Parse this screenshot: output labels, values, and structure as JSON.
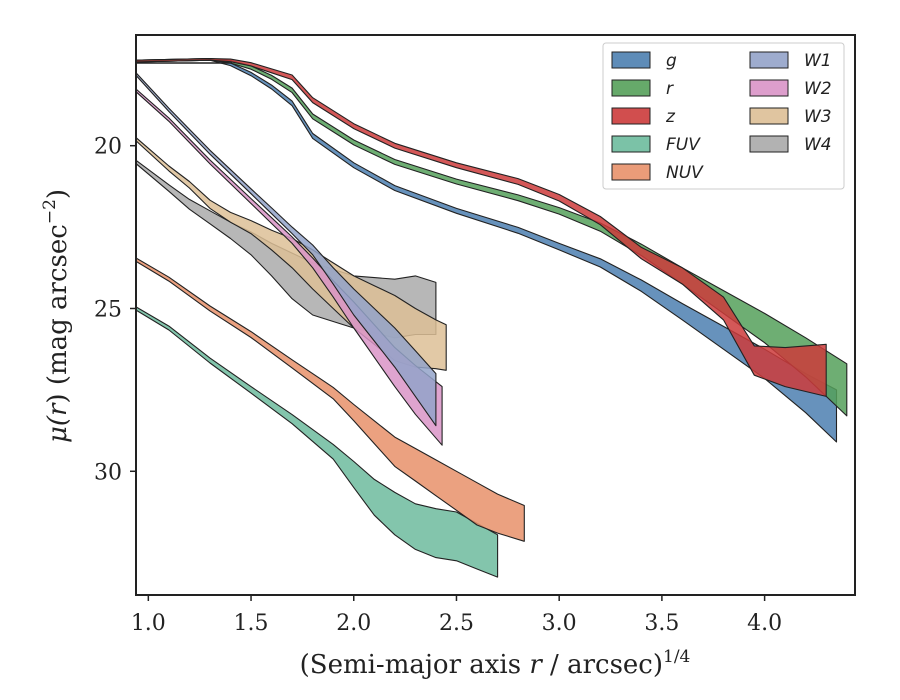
{
  "chart_data": {
    "type": "area",
    "xlabel_main": "(Semi-major axis ",
    "xlabel_var": "r",
    "xlabel_tail": " / arcsec)",
    "xlabel_sup": "1/4",
    "ylabel_main": "μ(",
    "ylabel_var": "r",
    "ylabel_tail": ") (mag arcsec",
    "ylabel_sup": "−2",
    "ylabel_close": ")",
    "xlim": [
      0.94,
      4.44
    ],
    "ylim": [
      33.8,
      16.6
    ],
    "y_inverted": true,
    "x_ticks": [
      1.0,
      1.5,
      2.0,
      2.5,
      3.0,
      3.5,
      4.0
    ],
    "x_tick_labels": [
      "1.0",
      "1.5",
      "2.0",
      "2.5",
      "3.0",
      "3.5",
      "4.0"
    ],
    "y_ticks": [
      20,
      25,
      30
    ],
    "y_tick_labels": [
      "20",
      "25",
      "30"
    ],
    "grid": false,
    "legend_position": "top-right",
    "legend_columns": 2,
    "series": [
      {
        "name": "g",
        "color": "#4c7fb0",
        "x": [
          0.94,
          1.3,
          1.4,
          1.5,
          1.6,
          1.7,
          1.8,
          2.0,
          2.2,
          2.5,
          2.8,
          3.0,
          3.2,
          3.4,
          3.6,
          3.8,
          4.0,
          4.2,
          4.35
        ],
        "y": [
          17.4,
          17.35,
          17.5,
          17.8,
          18.2,
          18.7,
          19.7,
          20.6,
          21.3,
          22.0,
          22.6,
          23.1,
          23.6,
          24.3,
          25.1,
          25.9,
          26.7,
          27.6,
          28.3
        ],
        "w": [
          0.05,
          0.05,
          0.08,
          0.1,
          0.12,
          0.14,
          0.15,
          0.15,
          0.15,
          0.15,
          0.18,
          0.2,
          0.25,
          0.35,
          0.5,
          0.7,
          0.9,
          1.2,
          1.6
        ]
      },
      {
        "name": "r",
        "color": "#55a05a",
        "x": [
          0.94,
          1.3,
          1.4,
          1.5,
          1.6,
          1.7,
          1.8,
          2.0,
          2.2,
          2.5,
          2.8,
          3.0,
          3.2,
          3.4,
          3.6,
          3.8,
          4.0,
          4.2,
          4.4
        ],
        "y": [
          17.4,
          17.35,
          17.42,
          17.6,
          17.9,
          18.3,
          19.1,
          19.9,
          20.5,
          21.1,
          21.6,
          22.0,
          22.5,
          23.2,
          24.0,
          24.8,
          25.6,
          26.5,
          27.5
        ],
        "w": [
          0.05,
          0.05,
          0.08,
          0.1,
          0.12,
          0.14,
          0.15,
          0.15,
          0.15,
          0.15,
          0.18,
          0.2,
          0.25,
          0.35,
          0.5,
          0.7,
          0.9,
          1.2,
          1.6
        ]
      },
      {
        "name": "z",
        "color": "#cc3b3b",
        "x": [
          0.94,
          1.3,
          1.4,
          1.5,
          1.6,
          1.7,
          1.8,
          2.0,
          2.2,
          2.5,
          2.8,
          3.0,
          3.2,
          3.4,
          3.6,
          3.8,
          3.95,
          4.1,
          4.3
        ],
        "y": [
          17.4,
          17.35,
          17.38,
          17.5,
          17.7,
          17.9,
          18.6,
          19.4,
          20.0,
          20.6,
          21.1,
          21.6,
          22.3,
          23.3,
          24.0,
          25.0,
          26.6,
          26.8,
          26.9
        ],
        "w": [
          0.05,
          0.05,
          0.08,
          0.1,
          0.12,
          0.14,
          0.15,
          0.15,
          0.15,
          0.15,
          0.18,
          0.2,
          0.25,
          0.35,
          0.5,
          0.7,
          0.9,
          1.2,
          1.6
        ]
      },
      {
        "name": "FUV",
        "color": "#6dbb9d",
        "x": [
          0.94,
          1.1,
          1.3,
          1.5,
          1.7,
          1.9,
          2.0,
          2.1,
          2.2,
          2.3,
          2.4,
          2.5,
          2.6,
          2.7
        ],
        "y": [
          25.0,
          25.6,
          26.6,
          27.5,
          28.4,
          29.4,
          30.1,
          30.8,
          31.3,
          31.7,
          31.9,
          32.0,
          32.3,
          32.6
        ],
        "w": [
          0.1,
          0.12,
          0.15,
          0.2,
          0.28,
          0.45,
          0.8,
          1.1,
          1.3,
          1.4,
          1.5,
          1.5,
          1.4,
          1.3
        ]
      },
      {
        "name": "NUV",
        "color": "#e8916a",
        "x": [
          0.94,
          1.1,
          1.3,
          1.5,
          1.7,
          1.9,
          2.0,
          2.1,
          2.2,
          2.3,
          2.4,
          2.5,
          2.6,
          2.7,
          2.83
        ],
        "y": [
          23.5,
          24.1,
          25.0,
          25.8,
          26.7,
          27.6,
          28.2,
          28.8,
          29.4,
          29.8,
          30.2,
          30.6,
          31.0,
          31.3,
          31.6
        ],
        "w": [
          0.1,
          0.12,
          0.15,
          0.18,
          0.25,
          0.35,
          0.5,
          0.7,
          0.9,
          1.0,
          1.1,
          1.2,
          1.3,
          1.2,
          1.1
        ]
      },
      {
        "name": "W1",
        "color": "#93a3c9",
        "x": [
          0.94,
          1.1,
          1.3,
          1.5,
          1.6,
          1.7,
          1.8,
          1.9,
          2.0,
          2.1,
          2.2,
          2.3,
          2.4
        ],
        "y": [
          17.8,
          18.9,
          20.2,
          21.4,
          22.0,
          22.6,
          23.2,
          24.0,
          24.8,
          25.5,
          26.2,
          27.0,
          27.8
        ],
        "w": [
          0.08,
          0.1,
          0.12,
          0.15,
          0.18,
          0.2,
          0.3,
          0.5,
          0.8,
          1.0,
          1.2,
          1.4,
          1.6
        ]
      },
      {
        "name": "W2",
        "color": "#d994c7",
        "x": [
          0.94,
          1.1,
          1.3,
          1.5,
          1.6,
          1.7,
          1.8,
          1.9,
          2.0,
          2.1,
          2.2,
          2.3,
          2.43
        ],
        "y": [
          18.3,
          19.2,
          20.5,
          21.7,
          22.3,
          22.9,
          23.6,
          24.4,
          25.2,
          26.0,
          26.8,
          27.5,
          28.3
        ],
        "w": [
          0.08,
          0.1,
          0.12,
          0.15,
          0.18,
          0.2,
          0.3,
          0.5,
          0.8,
          1.0,
          1.2,
          1.5,
          1.8
        ]
      },
      {
        "name": "W3",
        "color": "#ddbf96",
        "x": [
          0.94,
          1.1,
          1.2,
          1.3,
          1.4,
          1.5,
          1.6,
          1.7,
          1.8,
          1.9,
          2.0,
          2.1,
          2.2,
          2.3,
          2.4,
          2.45
        ],
        "y": [
          19.8,
          20.7,
          21.2,
          21.8,
          22.2,
          22.5,
          22.9,
          23.3,
          23.8,
          24.3,
          24.8,
          25.2,
          25.6,
          25.9,
          26.1,
          26.2
        ],
        "w": [
          0.1,
          0.15,
          0.2,
          0.25,
          0.3,
          0.4,
          0.6,
          0.9,
          1.2,
          1.4,
          1.6,
          1.8,
          2.0,
          1.8,
          1.5,
          1.4
        ]
      },
      {
        "name": "W4",
        "color": "#aaaaaa",
        "x": [
          0.94,
          1.1,
          1.2,
          1.3,
          1.4,
          1.5,
          1.6,
          1.7,
          1.8,
          1.9,
          2.0,
          2.1,
          2.2,
          2.3,
          2.4
        ],
        "y": [
          20.5,
          21.3,
          21.8,
          22.2,
          22.6,
          23.0,
          23.5,
          24.0,
          24.4,
          24.6,
          24.8,
          24.9,
          25.0,
          24.9,
          25.0
        ],
        "w": [
          0.1,
          0.2,
          0.3,
          0.4,
          0.5,
          0.7,
          1.0,
          1.4,
          1.6,
          1.6,
          1.6,
          1.7,
          1.8,
          1.8,
          1.6
        ]
      }
    ]
  }
}
